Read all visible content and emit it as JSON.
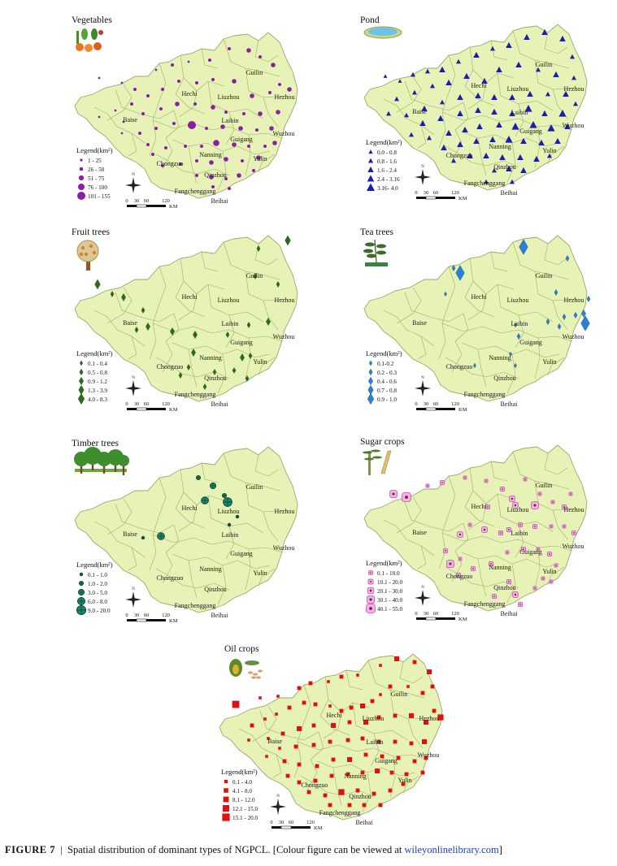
{
  "figure": {
    "caption_label": "FIGURE 7",
    "caption_separator": "|",
    "caption_text": "Spatial distribution of dominant types of NGPCL. [Colour figure can be viewed at",
    "caption_link": "wileyonlinelibrary.com",
    "caption_end": "]"
  },
  "common": {
    "legend_title": "Legend(km²)",
    "scale_ticks": [
      "0",
      "30",
      "60",
      "120"
    ],
    "scale_unit": "KM",
    "north_label": "N",
    "land_color": "#e6f2b6",
    "border_color": "#9aa86a"
  },
  "cities": [
    "Guilin",
    "Hechi",
    "Liuzhou",
    "Hezhou",
    "Baise",
    "Laibin",
    "Wuzhou",
    "Guigang",
    "Nanning",
    "Yulin",
    "Chongzuo",
    "Qinzhou",
    "Fangchenggang",
    "Beihai"
  ],
  "panels": [
    {
      "id": "vegetables",
      "title": "Vegetables",
      "icon": "vegetable-basket-icon",
      "symbol": "circle",
      "color": "#8a1fa6",
      "legend": [
        "1 - 25",
        "26 - 50",
        "51 - 75",
        "76 - 100",
        "101 - 155"
      ]
    },
    {
      "id": "pond",
      "title": "Pond",
      "icon": "pond-icon",
      "symbol": "triangle",
      "color": "#1c1fa8",
      "legend": [
        "0.0 - 0.8",
        "0.8 - 1.6",
        "1.6 - 2.4",
        "2.4 - 3.16",
        "3.16- 4.0"
      ]
    },
    {
      "id": "fruit",
      "title": "Fruit trees",
      "icon": "fruit-tree-icon",
      "symbol": "diamond",
      "color": "#2e6b1a",
      "legend": [
        "0.1 - 0.4",
        "0.5 - 0.8",
        "0.9 - 1.2",
        "1.3 - 3.9",
        "4.0 - 8.3"
      ]
    },
    {
      "id": "tea",
      "title": "Tea trees",
      "icon": "tea-leaf-icon",
      "symbol": "diamond",
      "color": "#2a7fdc",
      "legend": [
        "0.1-0.2",
        "0.2 - 0.3",
        "0.4 - 0.6",
        "0.7 - 0.8",
        "0.9 - 1.0"
      ]
    },
    {
      "id": "timber",
      "title": "Timber trees",
      "icon": "forest-icon",
      "symbol": "crosscircle",
      "color": "#1b8a6b",
      "legend": [
        "0.1 - 1.0",
        "1.0 - 2.0",
        "3.0 - 5.0",
        "6.0 - 8.0",
        "9.0 - 20.0"
      ]
    },
    {
      "id": "sugar",
      "title": "Sugar crops",
      "icon": "sugarcane-icon",
      "symbol": "sugar",
      "color": "#d05ab4",
      "legend": [
        "0.1 - 10.0",
        "10.1 - 20.0",
        "20.1 - 30.0",
        "30.1 - 40.0",
        "40.1 - 55.0"
      ]
    },
    {
      "id": "oil",
      "title": "Oil crops",
      "icon": "oil-seeds-icon",
      "symbol": "square",
      "color": "#e01010",
      "legend": [
        "0.1 - 4.0",
        "4.1 - 8.0",
        "8.1 - 12.0",
        "12.1 - 15.0",
        "15.1 - 20.0"
      ]
    }
  ]
}
